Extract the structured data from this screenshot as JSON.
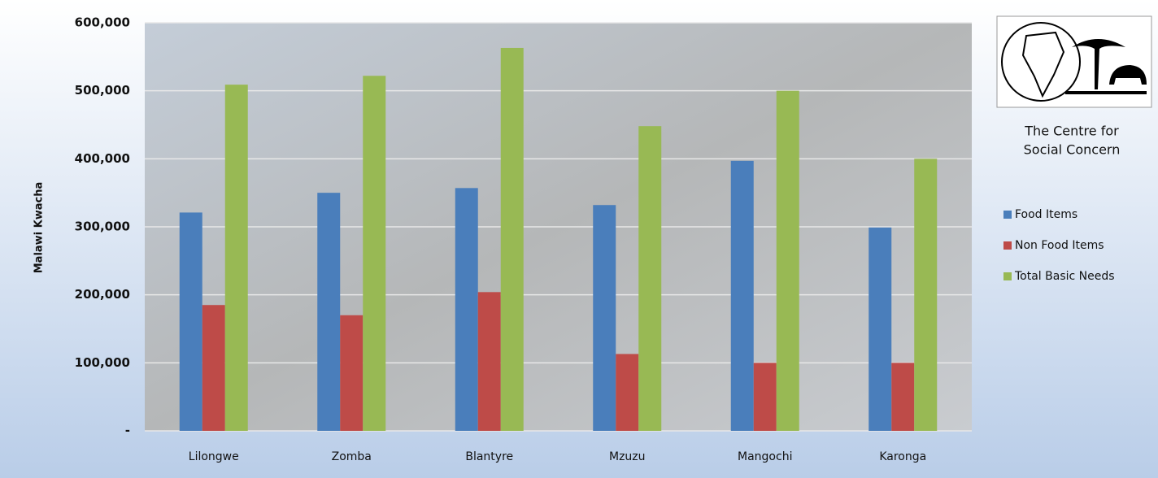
{
  "chart_data": {
    "type": "bar",
    "y_label": "Malawi Kwacha",
    "categories": [
      "Lilongwe",
      "Zomba",
      "Blantyre",
      "Mzuzu",
      "Mangochi",
      "Karonga"
    ],
    "series": [
      {
        "name": "Food Items",
        "color": "#4a7ebb",
        "values": [
          321000,
          350000,
          357000,
          332000,
          397000,
          299000
        ]
      },
      {
        "name": "Non Food Items",
        "color": "#be4b48",
        "values": [
          185000,
          170000,
          204000,
          113000,
          100000,
          100000
        ]
      },
      {
        "name": "Total Basic Needs",
        "color": "#98b954",
        "values": [
          509000,
          522000,
          563000,
          448000,
          500000,
          400000
        ]
      }
    ],
    "ylim": [
      0,
      600000
    ],
    "yticks": [
      {
        "value": 0,
        "label": "-"
      },
      {
        "value": 100000,
        "label": "100,000"
      },
      {
        "value": 200000,
        "label": "200,000"
      },
      {
        "value": 300000,
        "label": "300,000"
      },
      {
        "value": 400000,
        "label": "400,000"
      },
      {
        "value": 500000,
        "label": "500,000"
      },
      {
        "value": 600000,
        "label": "600,000"
      }
    ],
    "grid": true,
    "legend": "right",
    "logo_text": [
      "The Centre for",
      "Social Concern"
    ]
  }
}
